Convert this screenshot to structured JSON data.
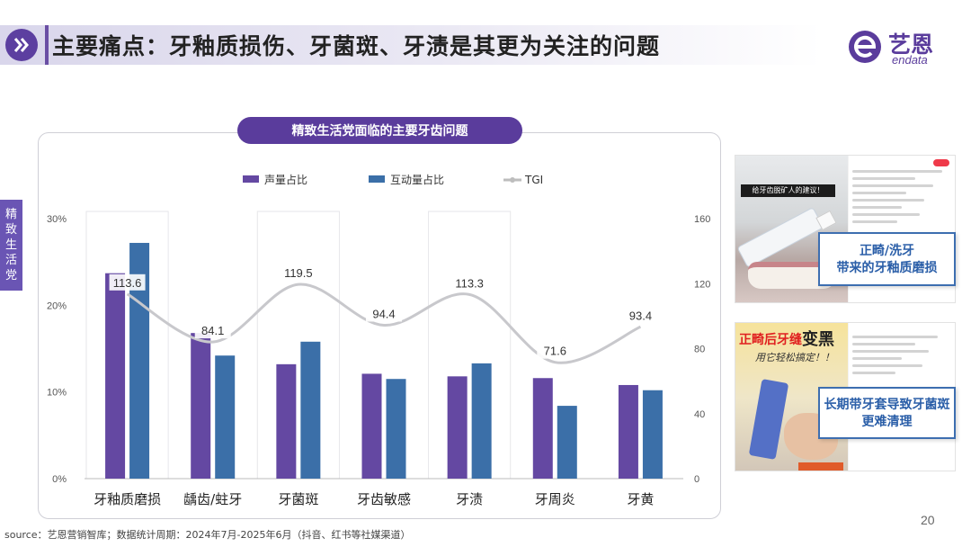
{
  "header": {
    "title": "主要痛点：牙釉质损伤、牙菌斑、牙渍是其更为关注的问题",
    "colors": {
      "accent": "#5c3fa0",
      "band": "#d9d6eb"
    }
  },
  "logo": {
    "cn": "艺恩",
    "en": "endata"
  },
  "side_tag": {
    "chars": [
      "精",
      "致",
      "生",
      "活",
      "党"
    ]
  },
  "chart_title": "精致生活党面临的主要牙齿问题",
  "chart_data": {
    "type": "bar",
    "title": "精致生活党面临的主要牙齿问题",
    "categories": [
      "牙釉质磨损",
      "龋齿/蛀牙",
      "牙菌斑",
      "牙齿敏感",
      "牙渍",
      "牙周炎",
      "牙黄"
    ],
    "series": [
      {
        "name": "声量占比",
        "type": "bar",
        "axis": "left",
        "color": "#6448a2",
        "values": [
          23.7,
          16.8,
          13.2,
          12.1,
          11.8,
          11.6,
          10.8
        ]
      },
      {
        "name": "互动量占比",
        "type": "bar",
        "axis": "left",
        "color": "#3b6fa8",
        "values": [
          27.2,
          14.2,
          15.8,
          11.5,
          13.3,
          8.4,
          10.2
        ]
      },
      {
        "name": "TGI",
        "type": "line",
        "axis": "right",
        "color": "#c8c8cc",
        "values": [
          113.6,
          84.1,
          119.5,
          94.4,
          113.3,
          71.6,
          93.4
        ]
      }
    ],
    "y_left": {
      "ticks": [
        "0%",
        "10%",
        "20%",
        "30%"
      ],
      "ylim": [
        0,
        30
      ]
    },
    "y_right": {
      "ticks": [
        "0",
        "40",
        "80",
        "120",
        "160"
      ],
      "ylim": [
        0,
        160
      ]
    },
    "highlight_categories": [
      0,
      2,
      4
    ],
    "legend_position": "top"
  },
  "cards": [
    {
      "banner": "给牙齿脱矿人的建议！",
      "callout": [
        "正畸/洗牙",
        "带来的牙釉质磨损"
      ]
    },
    {
      "title_red": "正畸后牙缝",
      "title_black": "变黑",
      "sub": "用它轻松搞定！！",
      "callout": [
        "长期带牙套导致牙菌斑",
        "更难清理"
      ]
    }
  ],
  "footer": {
    "source": "source：艺恩营销智库；数据统计周期：2024年7月-2025年6月（抖音、红书等社媒渠道）",
    "page": "20"
  }
}
